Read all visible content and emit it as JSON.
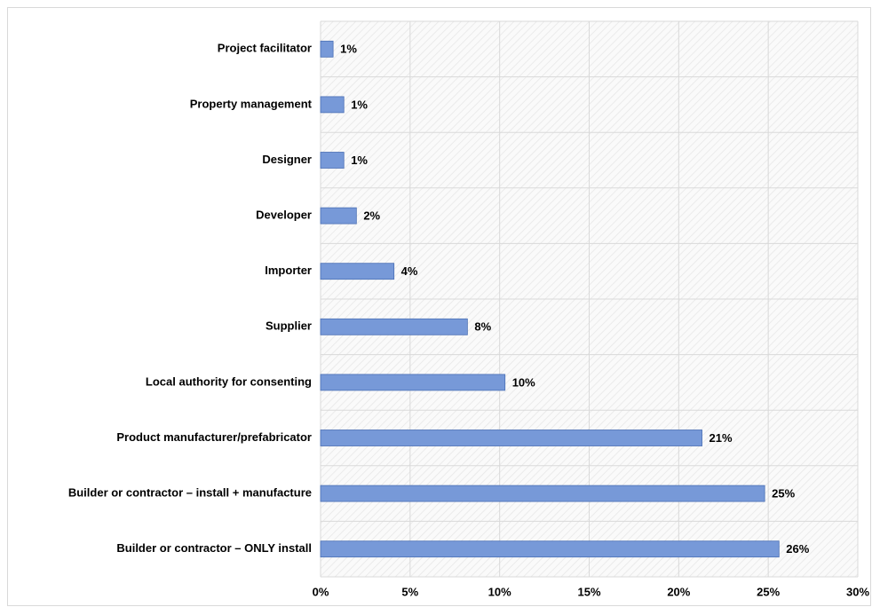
{
  "chart_data": {
    "type": "barh",
    "categories": [
      "Project facilitator",
      "Property management",
      "Designer",
      "Developer",
      "Importer",
      "Supplier",
      "Local authority for consenting",
      "Product manufacturer/prefabricator",
      "Builder or contractor – install + manufacture",
      "Builder or contractor – ONLY install"
    ],
    "values": [
      0.7,
      1.3,
      1.3,
      2.0,
      4.1,
      8.2,
      10.3,
      21.3,
      24.8,
      25.6
    ],
    "value_labels": [
      "1%",
      "1%",
      "1%",
      "2%",
      "4%",
      "8%",
      "10%",
      "21%",
      "25%",
      "26%"
    ],
    "color": "#7799d8",
    "xlim": [
      0,
      30
    ],
    "xticks": [
      {
        "value": 0,
        "label": "0%"
      },
      {
        "value": 5,
        "label": "5%"
      },
      {
        "value": 10,
        "label": "10%"
      },
      {
        "value": 15,
        "label": "15%"
      },
      {
        "value": 20,
        "label": "20%"
      },
      {
        "value": 25,
        "label": "25%"
      },
      {
        "value": 30,
        "label": "30%"
      }
    ],
    "grid": true
  }
}
